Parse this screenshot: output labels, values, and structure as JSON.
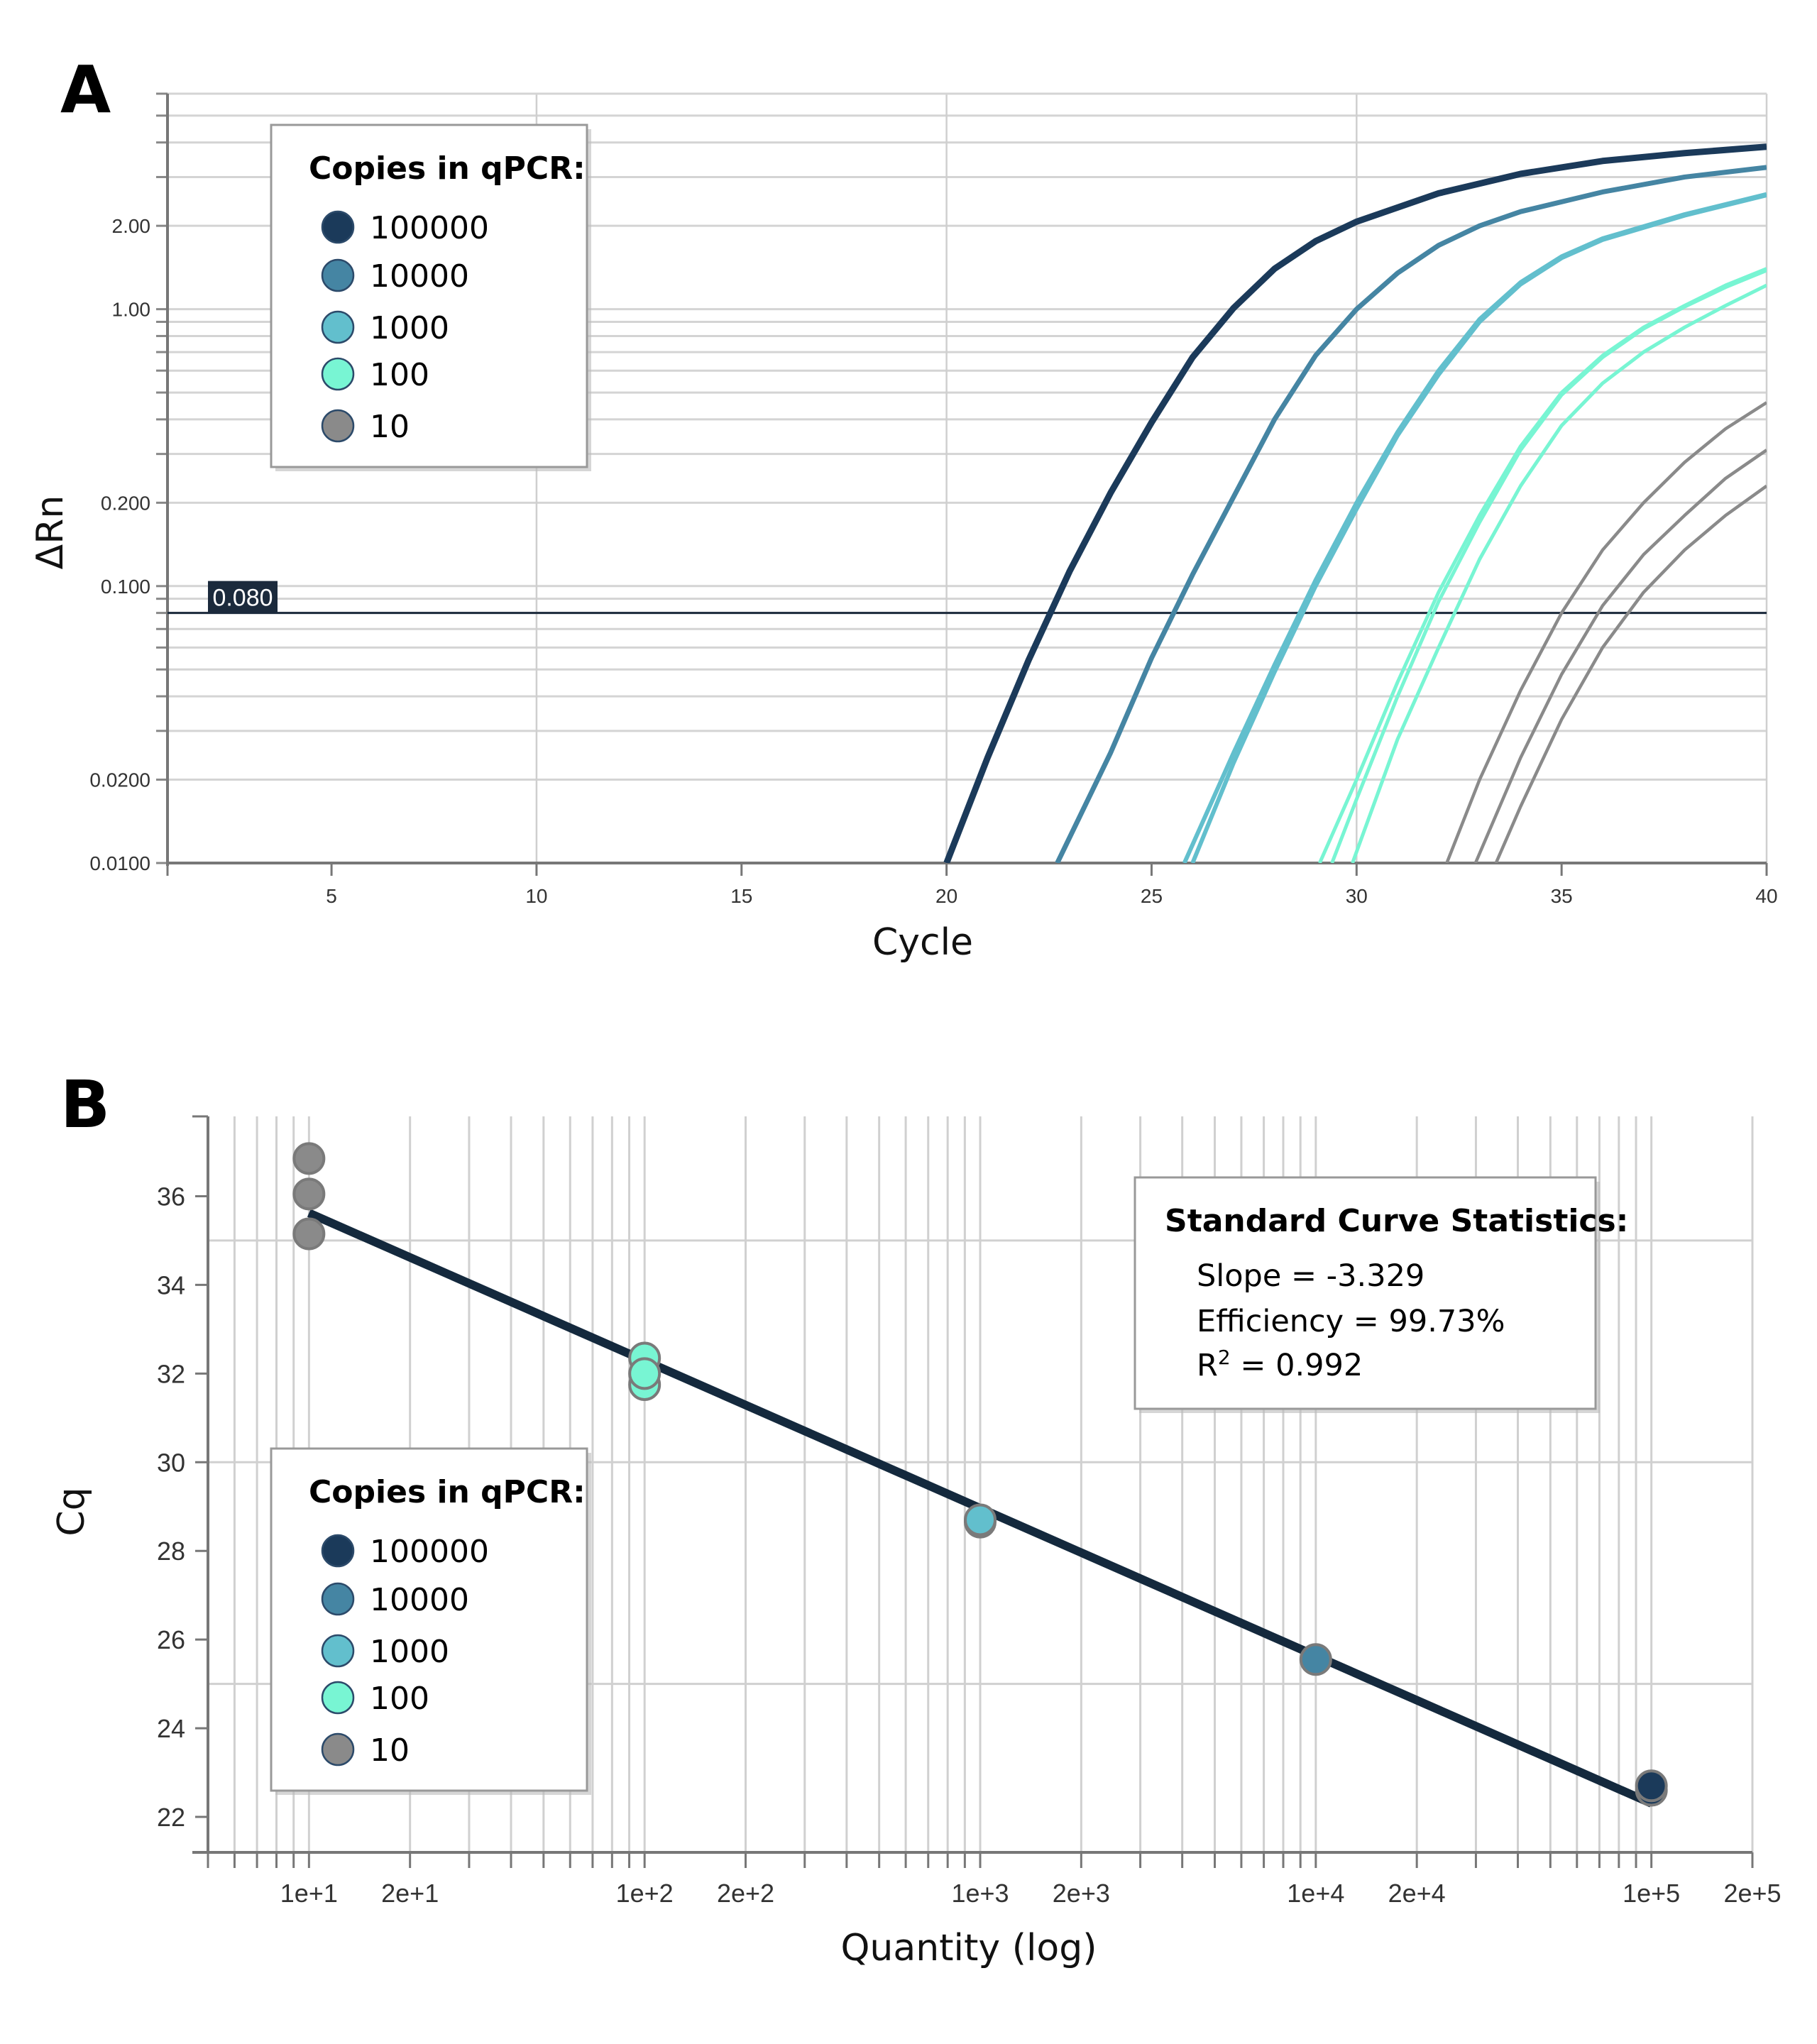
{
  "colors": {
    "100000": "#1b3a5a",
    "10000": "#4585a3",
    "1000": "#62bfcd",
    "100": "#78f5d3",
    "10": "#8a8a8a",
    "fit_line": "#14293d",
    "threshold": "#1b2a3c"
  },
  "legend": {
    "title": "Copies in qPCR:",
    "items": [
      "100000",
      "10000",
      "1000",
      "100",
      "10"
    ]
  },
  "chart_data": [
    {
      "panel_label": "A",
      "type": "line",
      "xlabel": "Cycle",
      "ylabel": "ΔRn",
      "xlim": [
        1,
        40
      ],
      "ylim": [
        0.01,
        6
      ],
      "y_scale": "log",
      "x_ticks": [
        5,
        10,
        15,
        20,
        25,
        30,
        35,
        40
      ],
      "y_ticks": [
        {
          "v": 0.01,
          "label": "0.0100"
        },
        {
          "v": 0.02,
          "label": "0.0200"
        },
        {
          "v": 0.1,
          "label": "0.100"
        },
        {
          "v": 0.2,
          "label": "0.200"
        },
        {
          "v": 1,
          "label": "1.00"
        },
        {
          "v": 2,
          "label": "2.00"
        }
      ],
      "grid": true,
      "legend_position": "top-left",
      "threshold": {
        "value": 0.08,
        "label": "0.080"
      },
      "series": [
        {
          "name": "100000",
          "points": [
            [
              20,
              0.01
            ],
            [
              21,
              0.024
            ],
            [
              22,
              0.054
            ],
            [
              23,
              0.113
            ],
            [
              24,
              0.217
            ],
            [
              25,
              0.39
            ],
            [
              26,
              0.67
            ],
            [
              27,
              1.01
            ],
            [
              28,
              1.4
            ],
            [
              29,
              1.76
            ],
            [
              30,
              2.07
            ],
            [
              32,
              2.62
            ],
            [
              34,
              3.08
            ],
            [
              36,
              3.43
            ],
            [
              38,
              3.66
            ],
            [
              40,
              3.86
            ]
          ]
        },
        {
          "name": "10000",
          "points": [
            [
              22.7,
              0.01
            ],
            [
              24,
              0.025
            ],
            [
              25,
              0.055
            ],
            [
              26,
              0.11
            ],
            [
              27,
              0.21
            ],
            [
              28,
              0.4
            ],
            [
              29,
              0.68
            ],
            [
              30,
              1.0
            ],
            [
              31,
              1.35
            ],
            [
              32,
              1.7
            ],
            [
              33,
              2.0
            ],
            [
              34,
              2.25
            ],
            [
              36,
              2.65
            ],
            [
              38,
              3.0
            ],
            [
              40,
              3.25
            ]
          ]
        },
        {
          "name": "1000",
          "points": [
            [
              25.8,
              0.01
            ],
            [
              27,
              0.025
            ],
            [
              28,
              0.052
            ],
            [
              29,
              0.105
            ],
            [
              30,
              0.2
            ],
            [
              31,
              0.36
            ],
            [
              32,
              0.6
            ],
            [
              33,
              0.92
            ],
            [
              34,
              1.25
            ],
            [
              35,
              1.55
            ],
            [
              36,
              1.8
            ],
            [
              38,
              2.2
            ],
            [
              40,
              2.6
            ]
          ]
        },
        {
          "name": "1000",
          "points": [
            [
              26.0,
              0.01
            ],
            [
              27,
              0.023
            ],
            [
              28,
              0.049
            ],
            [
              29,
              0.1
            ],
            [
              30,
              0.19
            ],
            [
              31,
              0.35
            ],
            [
              32,
              0.58
            ],
            [
              33,
              0.9
            ],
            [
              34,
              1.23
            ],
            [
              35,
              1.53
            ],
            [
              36,
              1.78
            ],
            [
              38,
              2.18
            ],
            [
              40,
              2.58
            ]
          ]
        },
        {
          "name": "100",
          "points": [
            [
              29.1,
              0.01
            ],
            [
              30,
              0.02
            ],
            [
              31,
              0.045
            ],
            [
              32,
              0.095
            ],
            [
              33,
              0.18
            ],
            [
              34,
              0.32
            ],
            [
              35,
              0.5
            ],
            [
              36,
              0.68
            ],
            [
              37,
              0.86
            ],
            [
              38,
              1.03
            ],
            [
              39,
              1.22
            ],
            [
              40,
              1.4
            ]
          ]
        },
        {
          "name": "100",
          "points": [
            [
              29.4,
              0.01
            ],
            [
              30,
              0.017
            ],
            [
              31,
              0.04
            ],
            [
              32,
              0.088
            ],
            [
              33,
              0.17
            ],
            [
              34,
              0.31
            ],
            [
              35,
              0.49
            ],
            [
              36,
              0.67
            ],
            [
              37,
              0.85
            ],
            [
              38,
              1.02
            ],
            [
              39,
              1.2
            ],
            [
              40,
              1.38
            ]
          ]
        },
        {
          "name": "100",
          "points": [
            [
              29.9,
              0.01
            ],
            [
              31,
              0.028
            ],
            [
              32,
              0.06
            ],
            [
              33,
              0.125
            ],
            [
              34,
              0.23
            ],
            [
              35,
              0.38
            ],
            [
              36,
              0.54
            ],
            [
              37,
              0.7
            ],
            [
              38,
              0.86
            ],
            [
              39,
              1.03
            ],
            [
              40,
              1.22
            ]
          ]
        },
        {
          "name": "10",
          "points": [
            [
              32.2,
              0.01
            ],
            [
              33,
              0.02
            ],
            [
              34,
              0.042
            ],
            [
              35,
              0.08
            ],
            [
              36,
              0.135
            ],
            [
              37,
              0.2
            ],
            [
              38,
              0.28
            ],
            [
              39,
              0.37
            ],
            [
              40,
              0.46
            ]
          ]
        },
        {
          "name": "10",
          "points": [
            [
              32.9,
              0.01
            ],
            [
              34,
              0.024
            ],
            [
              35,
              0.048
            ],
            [
              36,
              0.085
            ],
            [
              37,
              0.13
            ],
            [
              38,
              0.18
            ],
            [
              39,
              0.245
            ],
            [
              40,
              0.31
            ]
          ]
        },
        {
          "name": "10",
          "points": [
            [
              33.4,
              0.01
            ],
            [
              34,
              0.016
            ],
            [
              35,
              0.033
            ],
            [
              36,
              0.06
            ],
            [
              37,
              0.095
            ],
            [
              38,
              0.135
            ],
            [
              39,
              0.18
            ],
            [
              40,
              0.23
            ]
          ]
        }
      ]
    },
    {
      "panel_label": "B",
      "type": "scatter",
      "xlabel": "Quantity (log)",
      "ylabel": "Cq",
      "xlim": [
        5,
        200000
      ],
      "ylim": [
        21.2,
        37.8
      ],
      "x_scale": "log",
      "x_ticks": [
        {
          "v": 10,
          "label": "1e+1"
        },
        {
          "v": 20,
          "label": "2e+1"
        },
        {
          "v": 100,
          "label": "1e+2"
        },
        {
          "v": 200,
          "label": "2e+2"
        },
        {
          "v": 1000,
          "label": "1e+3"
        },
        {
          "v": 2000,
          "label": "2e+3"
        },
        {
          "v": 10000,
          "label": "1e+4"
        },
        {
          "v": 20000,
          "label": "2e+4"
        },
        {
          "v": 100000,
          "label": "1e+5"
        },
        {
          "v": 200000,
          "label": "2e+5"
        }
      ],
      "y_ticks": [
        22,
        24,
        26,
        28,
        30,
        32,
        34,
        36
      ],
      "grid": true,
      "legend_position": "bottom-left",
      "points": [
        {
          "group": "10",
          "x": 10,
          "y": 36.85
        },
        {
          "group": "10",
          "x": 10,
          "y": 36.05
        },
        {
          "group": "10",
          "x": 10,
          "y": 35.15
        },
        {
          "group": "100",
          "x": 100,
          "y": 31.75
        },
        {
          "group": "100",
          "x": 100,
          "y": 32.35
        },
        {
          "group": "100",
          "x": 100,
          "y": 32.0
        },
        {
          "group": "1000",
          "x": 1000,
          "y": 28.65
        },
        {
          "group": "1000",
          "x": 1000,
          "y": 28.7
        },
        {
          "group": "10000",
          "x": 10000,
          "y": 25.55
        },
        {
          "group": "100000",
          "x": 100000,
          "y": 22.6
        },
        {
          "group": "100000",
          "x": 100000,
          "y": 22.7
        }
      ],
      "fit": {
        "slope": -3.329,
        "intercept": 38.95,
        "x_range": [
          10,
          100000
        ]
      },
      "stats": {
        "title": "Standard Curve Statistics:",
        "slope": "Slope = -3.329",
        "efficiency": "Efficiency = 99.73%",
        "r2_prefix": "R",
        "r2_sup": "2",
        "r2_value": " = 0.992"
      }
    }
  ]
}
